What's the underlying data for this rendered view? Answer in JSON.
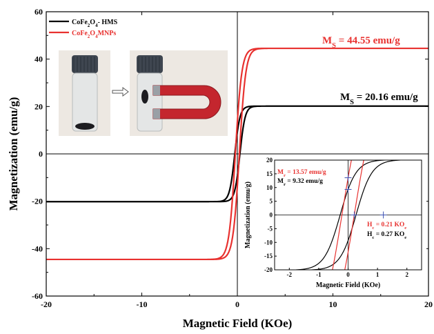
{
  "chart_data": [
    {
      "type": "line",
      "xlabel": "Magnetic Field (KOe)",
      "ylabel": "Magnetization (emu/g)",
      "xlim": [
        -20,
        20
      ],
      "ylim": [
        -60,
        60
      ],
      "xticks": [
        -20,
        -10,
        0,
        10,
        20
      ],
      "yticks": [
        -60,
        -40,
        -20,
        0,
        20,
        40,
        60
      ],
      "grid": false,
      "legend": "top-left",
      "series": [
        {
          "name": "CoFe2O4- HMS",
          "color": "#000000",
          "Ms": 20.16,
          "Mr": 9.32,
          "Hc": 0.27
        },
        {
          "name": "CoFe2O4 MNPs",
          "color": "#e8312f",
          "Ms": 44.55,
          "Mr": 13.57,
          "Hc": 0.21
        }
      ],
      "annotations": [
        {
          "text": "M",
          "sub": "S",
          "value": " = 44.55 emu/g",
          "color": "#e8312f"
        },
        {
          "text": "M",
          "sub": "S",
          "value": " = 20.16 emu/g",
          "color": "#000000"
        }
      ]
    },
    {
      "type": "line",
      "role": "inset",
      "xlabel": "Magnetic Field (KOe)",
      "ylabel": "Magnetization (emu/g)",
      "xlim": [
        -2.5,
        2.5
      ],
      "ylim": [
        -20,
        20
      ],
      "xticks": [
        -2,
        -1,
        0,
        1,
        2
      ],
      "yticks": [
        -20,
        -15,
        -10,
        -5,
        0,
        5,
        10,
        15,
        20
      ],
      "annotations": [
        {
          "text": "M",
          "sub": "r",
          "value": " = 13.57 emu/g",
          "color": "#e8312f"
        },
        {
          "text": "M",
          "sub": "r",
          "value": " = 9.32 emu/g",
          "color": "#000000"
        },
        {
          "text": "H",
          "sub": "c",
          "value": " = 0.21 KO",
          "tail": "e",
          "color": "#e8312f"
        },
        {
          "text": "H",
          "sub": "c",
          "value": " = 0.27 KO",
          "tail": "e",
          "color": "#000000"
        }
      ]
    }
  ],
  "legend_labels": [
    {
      "pre": "CoFe",
      "s1": "2",
      "mid": "O",
      "s2": "4",
      "post": "- HMS",
      "color": "#000000"
    },
    {
      "pre": "CoFe",
      "s1": "2",
      "mid": "O",
      "s2": "4",
      "post": "MNPs",
      "color": "#e8312f"
    }
  ],
  "photos": [
    {
      "name": "vial-photo",
      "subject": "vial-dispersed"
    },
    {
      "name": "vial-with-magnet-photo",
      "subject": "vial-magnet"
    }
  ]
}
